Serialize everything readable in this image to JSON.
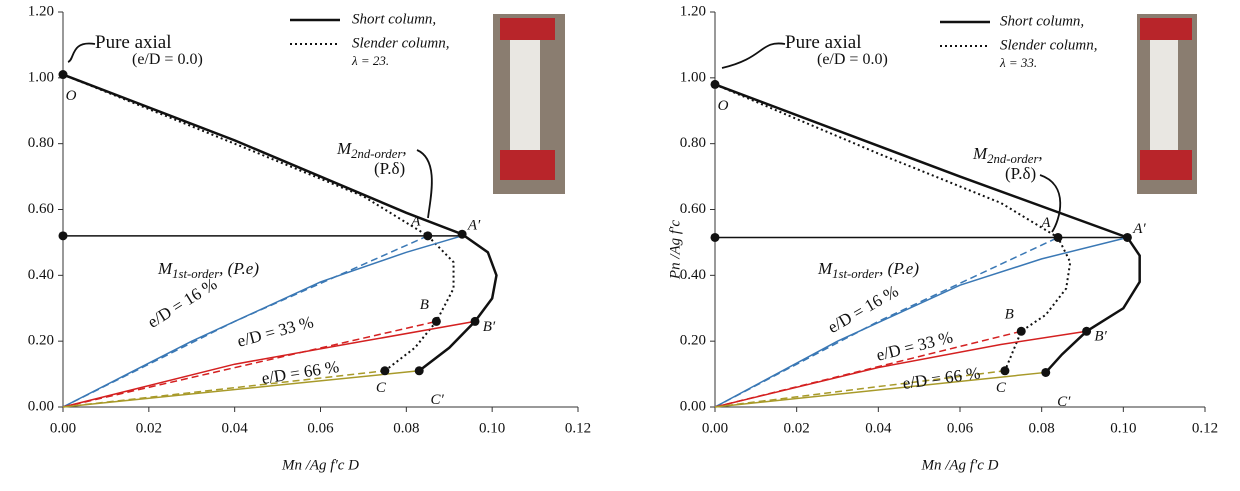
{
  "chart_data": [
    {
      "type": "line",
      "xlabel": "Mn /Ag f′c D",
      "xlim": [
        0,
        0.12
      ],
      "ylim": [
        0,
        1.2
      ],
      "xticks": [
        {
          "value": 0,
          "label": "0.00"
        },
        {
          "value": 0.02,
          "label": "0.02"
        },
        {
          "value": 0.04,
          "label": "0.04"
        },
        {
          "value": 0.06,
          "label": "0.06"
        },
        {
          "value": 0.08,
          "label": "0.08"
        },
        {
          "value": 0.1,
          "label": "0.10"
        },
        {
          "value": 0.12,
          "label": "0.12"
        }
      ],
      "yticks": [
        {
          "value": 0,
          "label": "0.00"
        },
        {
          "value": 0.2,
          "label": "0.20"
        },
        {
          "value": 0.4,
          "label": "0.40"
        },
        {
          "value": 0.6,
          "label": "0.60"
        },
        {
          "value": 0.8,
          "label": "0.80"
        },
        {
          "value": 1,
          "label": "1.00"
        },
        {
          "value": 1.2,
          "label": "1.20"
        }
      ],
      "series": [
        {
          "name": "Short column,",
          "color": "#111111",
          "style": "solid",
          "width": 2.5,
          "x": [
            0,
            0.04,
            0.08,
            0.093,
            0.099,
            0.101,
            0.1,
            0.096,
            0.09,
            0.083
          ],
          "values": [
            1.01,
            0.81,
            0.59,
            0.525,
            0.47,
            0.4,
            0.33,
            0.26,
            0.18,
            0.11
          ]
        },
        {
          "name": "Slender column,",
          "color": "#111111",
          "style": "dotted",
          "width": 2,
          "x": [
            0,
            0.04,
            0.07,
            0.085,
            0.091,
            0.091,
            0.087,
            0.082,
            0.075
          ],
          "values": [
            1.01,
            0.8,
            0.64,
            0.52,
            0.44,
            0.36,
            0.26,
            0.18,
            0.11
          ]
        },
        {
          "color": "#111111",
          "style": "solid",
          "width": 1.5,
          "x": [
            0,
            0.093
          ],
          "values": [
            0.52,
            0.52
          ]
        },
        {
          "color": "#3a78b5",
          "style": "solid",
          "width": 1.5,
          "x": [
            0,
            0.03,
            0.06,
            0.08,
            0.093
          ],
          "values": [
            0,
            0.2,
            0.38,
            0.47,
            0.52
          ]
        },
        {
          "color": "#3a78b5",
          "style": "dashed",
          "width": 1.5,
          "x": [
            0,
            0.04,
            0.085
          ],
          "values": [
            0,
            0.26,
            0.52
          ]
        },
        {
          "color": "#d42020",
          "style": "solid",
          "width": 1.5,
          "x": [
            0,
            0.04,
            0.07,
            0.096
          ],
          "values": [
            0,
            0.13,
            0.2,
            0.26
          ]
        },
        {
          "color": "#d42020",
          "style": "dashed",
          "width": 1.5,
          "x": [
            0,
            0.087
          ],
          "values": [
            0,
            0.26
          ]
        },
        {
          "color": "#a89a2a",
          "style": "solid",
          "width": 1.5,
          "x": [
            0,
            0.083
          ],
          "values": [
            0,
            0.11
          ]
        },
        {
          "color": "#a89a2a",
          "style": "dashed",
          "width": 1.5,
          "x": [
            0,
            0.075
          ],
          "values": [
            0,
            0.11
          ]
        },
        {
          "color": "#111111",
          "style": "points",
          "x": [
            0,
            0,
            0.085,
            0.093,
            0.087,
            0.096,
            0.075,
            0.083
          ],
          "values": [
            1.01,
            0.52,
            0.52,
            0.525,
            0.26,
            0.26,
            0.11,
            0.11
          ],
          "labels": [
            "O",
            null,
            "A",
            "A′",
            "B",
            "B′",
            "C",
            "C′"
          ]
        }
      ],
      "annotations": [
        "Pure axial",
        "(e/D = 0.0)",
        "M",
        "1st-order",
        ", (P.e)",
        "M",
        "2nd-order",
        ",",
        "(P.δ)",
        "e/D = 16 %",
        "e/D = 33 %",
        "e/D = 66 %",
        "λ = 23."
      ]
    },
    {
      "type": "line",
      "xlabel": "Mn /Ag f′c D",
      "ylabel": "Pn /Ag f′c",
      "xlim": [
        0,
        0.12
      ],
      "ylim": [
        0,
        1.2
      ],
      "xticks": [
        {
          "value": 0,
          "label": "0.00"
        },
        {
          "value": 0.02,
          "label": "0.02"
        },
        {
          "value": 0.04,
          "label": "0.04"
        },
        {
          "value": 0.06,
          "label": "0.06"
        },
        {
          "value": 0.08,
          "label": "0.08"
        },
        {
          "value": 0.1,
          "label": "0.10"
        },
        {
          "value": 0.12,
          "label": "0.12"
        }
      ],
      "yticks": [
        {
          "value": 0,
          "label": "0.00"
        },
        {
          "value": 0.2,
          "label": "0.20"
        },
        {
          "value": 0.4,
          "label": "0.40"
        },
        {
          "value": 0.6,
          "label": "0.60"
        },
        {
          "value": 0.8,
          "label": "0.80"
        },
        {
          "value": 1,
          "label": "1.00"
        },
        {
          "value": 1.2,
          "label": "1.20"
        }
      ],
      "series": [
        {
          "name": "Short column,",
          "color": "#111111",
          "style": "solid",
          "width": 2.5,
          "x": [
            0,
            0.06,
            0.101,
            0.104,
            0.104,
            0.1,
            0.091,
            0.085,
            0.081
          ],
          "values": [
            0.98,
            0.7,
            0.515,
            0.46,
            0.38,
            0.3,
            0.23,
            0.16,
            0.105
          ]
        },
        {
          "name": "Slender column,",
          "color": "#111111",
          "style": "dotted",
          "width": 2,
          "x": [
            0,
            0.04,
            0.07,
            0.084,
            0.087,
            0.086,
            0.081,
            0.075,
            0.071
          ],
          "values": [
            0.98,
            0.77,
            0.62,
            0.515,
            0.44,
            0.36,
            0.28,
            0.23,
            0.11
          ]
        },
        {
          "color": "#111111",
          "style": "solid",
          "width": 1.5,
          "x": [
            0,
            0.101
          ],
          "values": [
            0.515,
            0.515
          ]
        },
        {
          "color": "#3a78b5",
          "style": "solid",
          "width": 1.5,
          "x": [
            0,
            0.03,
            0.06,
            0.08,
            0.101
          ],
          "values": [
            0,
            0.2,
            0.37,
            0.45,
            0.515
          ]
        },
        {
          "color": "#3a78b5",
          "style": "dashed",
          "width": 1.5,
          "x": [
            0,
            0.04,
            0.084
          ],
          "values": [
            0,
            0.26,
            0.515
          ]
        },
        {
          "color": "#d42020",
          "style": "solid",
          "width": 1.5,
          "x": [
            0,
            0.04,
            0.07,
            0.091
          ],
          "values": [
            0,
            0.12,
            0.19,
            0.23
          ]
        },
        {
          "color": "#d42020",
          "style": "dashed",
          "width": 1.5,
          "x": [
            0,
            0.075
          ],
          "values": [
            0,
            0.23
          ]
        },
        {
          "color": "#a89a2a",
          "style": "solid",
          "width": 1.5,
          "x": [
            0,
            0.081
          ],
          "values": [
            0,
            0.105
          ]
        },
        {
          "color": "#a89a2a",
          "style": "dashed",
          "width": 1.5,
          "x": [
            0,
            0.071
          ],
          "values": [
            0,
            0.11
          ]
        },
        {
          "color": "#111111",
          "style": "points",
          "x": [
            0,
            0,
            0.084,
            0.101,
            0.075,
            0.091,
            0.071,
            0.081
          ],
          "values": [
            0.98,
            0.515,
            0.515,
            0.515,
            0.23,
            0.23,
            0.11,
            0.105
          ],
          "labels": [
            "O",
            null,
            "A",
            "A′",
            "B",
            "B′",
            "C",
            "C′"
          ]
        }
      ],
      "annotations": [
        "Pure axial",
        "(e/D = 0.0)",
        "M",
        "1st-order",
        ", (P.e)",
        "M",
        "2nd-order",
        ",",
        "(P.δ)",
        "e/D = 16 %",
        "e/D = 33 %",
        "e/D = 66 %",
        "λ = 33."
      ]
    }
  ]
}
